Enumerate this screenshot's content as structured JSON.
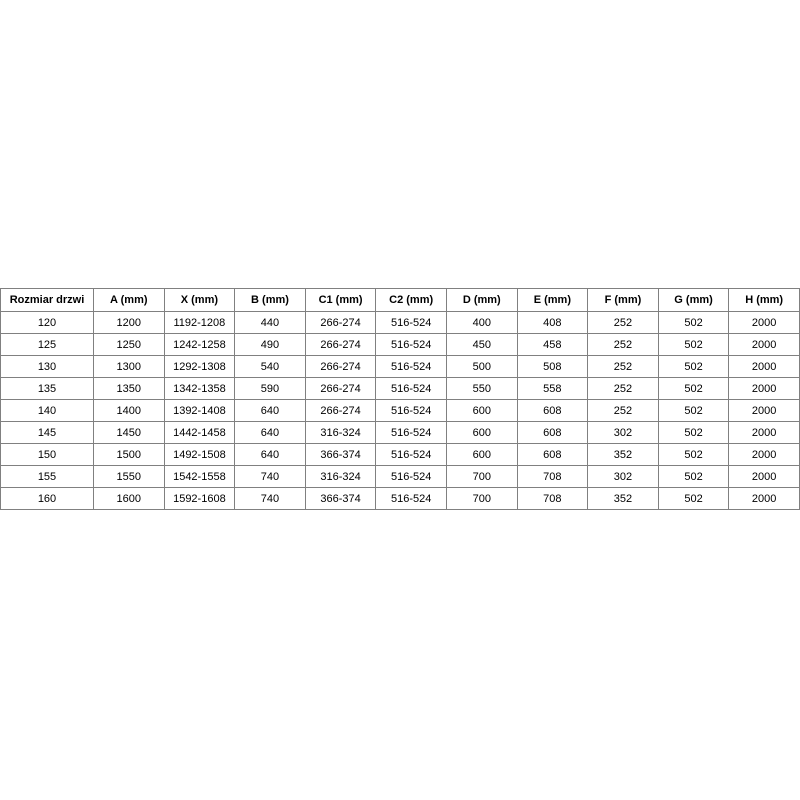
{
  "page": {
    "background": "#ffffff"
  },
  "table": {
    "border_color": "#808080",
    "text_color": "#000000",
    "headers": [
      "Rozmiar drzwi",
      "A (mm)",
      "X (mm)",
      "B (mm)",
      "C1 (mm)",
      "C2 (mm)",
      "D (mm)",
      "E (mm)",
      "F (mm)",
      "G (mm)",
      "H (mm)"
    ],
    "rows": [
      [
        "120",
        "1200",
        "1192-1208",
        "440",
        "266-274",
        "516-524",
        "400",
        "408",
        "252",
        "502",
        "2000"
      ],
      [
        "125",
        "1250",
        "1242-1258",
        "490",
        "266-274",
        "516-524",
        "450",
        "458",
        "252",
        "502",
        "2000"
      ],
      [
        "130",
        "1300",
        "1292-1308",
        "540",
        "266-274",
        "516-524",
        "500",
        "508",
        "252",
        "502",
        "2000"
      ],
      [
        "135",
        "1350",
        "1342-1358",
        "590",
        "266-274",
        "516-524",
        "550",
        "558",
        "252",
        "502",
        "2000"
      ],
      [
        "140",
        "1400",
        "1392-1408",
        "640",
        "266-274",
        "516-524",
        "600",
        "608",
        "252",
        "502",
        "2000"
      ],
      [
        "145",
        "1450",
        "1442-1458",
        "640",
        "316-324",
        "516-524",
        "600",
        "608",
        "302",
        "502",
        "2000"
      ],
      [
        "150",
        "1500",
        "1492-1508",
        "640",
        "366-374",
        "516-524",
        "600",
        "608",
        "352",
        "502",
        "2000"
      ],
      [
        "155",
        "1550",
        "1542-1558",
        "740",
        "316-324",
        "516-524",
        "700",
        "708",
        "302",
        "502",
        "2000"
      ],
      [
        "160",
        "1600",
        "1592-1608",
        "740",
        "366-374",
        "516-524",
        "700",
        "708",
        "352",
        "502",
        "2000"
      ]
    ]
  }
}
